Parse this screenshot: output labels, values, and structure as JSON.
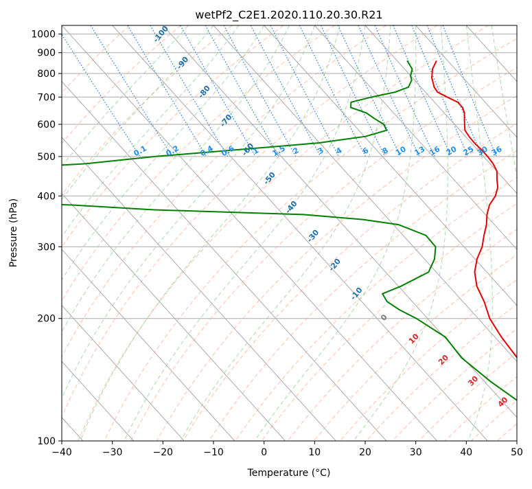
{
  "chart_data": {
    "type": "line",
    "subtype": "skew-t log-p",
    "title": "wetPf2_C2E1.2020.110.20.30.R21",
    "xlabel": "Temperature (°C)",
    "ylabel": "Pressure (hPa)",
    "xlim": [
      -40,
      50
    ],
    "ylim": [
      1050,
      100
    ],
    "x_ticks": [
      -40,
      -30,
      -20,
      -10,
      0,
      10,
      20,
      30,
      40,
      50
    ],
    "y_ticks": [
      100,
      200,
      300,
      400,
      500,
      600,
      700,
      800,
      900,
      1000
    ],
    "grid": true,
    "y_scale": "log",
    "colors": {
      "temperature": "#e50000",
      "dewpoint": "#008000",
      "isotherm": "#aaaaaa",
      "dry_adiabat": "#ff8c66",
      "moist_adiabat": "#66bb66",
      "mixing_ratio": "#1f77e4",
      "dry_label": "#d62728",
      "moist_label": "#1f6fa8",
      "mixing_label": "#1f8fe8"
    },
    "series": [
      {
        "name": "",
        "role": "temperature",
        "pressure": [
          860,
          820,
          780,
          740,
          720,
          700,
          680,
          660,
          640,
          620,
          600,
          580,
          560,
          540,
          520,
          500,
          480,
          460,
          440,
          420,
          400,
          380,
          360,
          340,
          320,
          300,
          280,
          260,
          240,
          220,
          200,
          180,
          160,
          140,
          120,
          110,
          100
        ],
        "values": [
          27.8,
          25.5,
          23.8,
          22.6,
          22.4,
          23.4,
          24.6,
          24.6,
          24.0,
          23.0,
          22.0,
          21.0,
          20.7,
          20.6,
          20.8,
          20.8,
          20.6,
          20.0,
          18.6,
          17.3,
          15.3,
          12.5,
          10.3,
          8.4,
          6.0,
          3.6,
          0.4,
          -2.4,
          -4.5,
          -5.8,
          -7.7,
          -8.7,
          -9.3,
          -9.4,
          -10.0,
          -11.4,
          -12.3
        ]
      },
      {
        "name": "",
        "role": "dewpoint",
        "pressure": [
          860,
          820,
          790,
          770,
          740,
          720,
          700,
          680,
          660,
          640,
          620,
          600,
          580,
          560,
          540,
          520,
          500,
          480,
          460,
          440,
          420,
          400,
          380,
          370,
          360,
          350,
          340,
          320,
          300,
          280,
          260,
          240,
          230,
          220,
          210,
          200,
          180,
          160,
          140,
          120,
          110,
          100
        ],
        "values": [
          22.0,
          21.5,
          20.0,
          19.4,
          17.5,
          14.0,
          8.5,
          3.5,
          2.5,
          4.6,
          5.2,
          6.0,
          5.5,
          0.2,
          -10.2,
          -27.0,
          -45.0,
          -60.0,
          -88.0,
          -100.0,
          -110.0,
          -118.0,
          -70.0,
          -55.0,
          -26.0,
          -15.0,
          -9.0,
          -5.5,
          -5.6,
          -8.0,
          -11.5,
          -19.5,
          -24.5,
          -25.0,
          -24.0,
          -22.2,
          -19.8,
          -20.3,
          -18.8,
          -16.1,
          -14.7,
          -12.3
        ]
      }
    ],
    "dry_adiabat_labels": [
      "0",
      "10",
      "20",
      "30",
      "40"
    ],
    "moist_adiabat_labels": [
      "-100",
      "-90",
      "-80",
      "-70",
      "-60",
      "-50",
      "-40",
      "-30",
      "-20",
      "-10"
    ],
    "mixing_ratio_labels": [
      "0.1",
      "0.2",
      "0.4",
      "0.6",
      "1",
      "1.5",
      "2",
      "3",
      "4",
      "6",
      "8",
      "10",
      "13",
      "16",
      "20",
      "25",
      "30",
      "36"
    ]
  }
}
